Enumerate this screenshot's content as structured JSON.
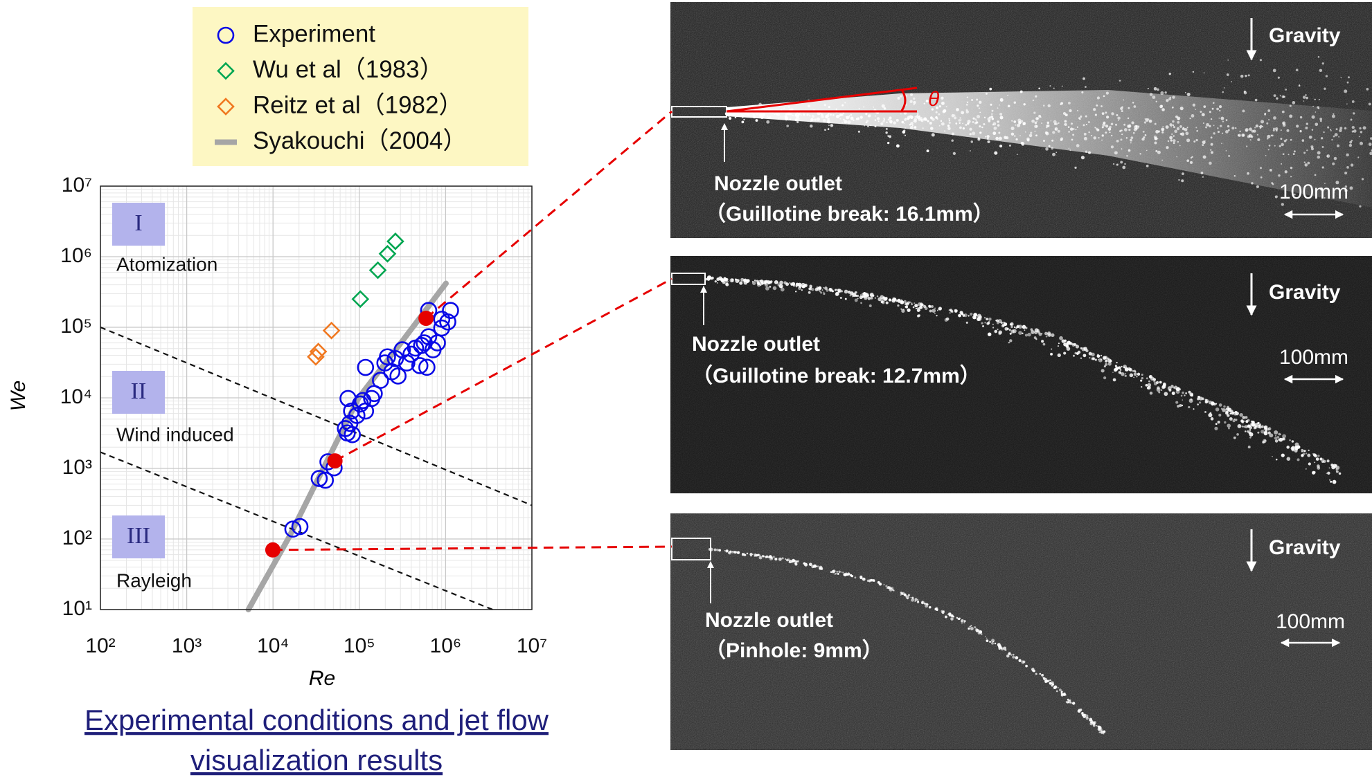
{
  "chart_data": {
    "type": "scatter",
    "xlabel": "Re",
    "ylabel": "We",
    "xscale": "log",
    "yscale": "log",
    "xlim": [
      100,
      10000000
    ],
    "ylim": [
      10,
      10000000
    ],
    "xticks": [
      {
        "value": 100,
        "label": "10²"
      },
      {
        "value": 1000,
        "label": "10³"
      },
      {
        "value": 10000,
        "label": "10⁴"
      },
      {
        "value": 100000,
        "label": "10⁵"
      },
      {
        "value": 1000000,
        "label": "10⁶"
      },
      {
        "value": 10000000,
        "label": "10⁷"
      }
    ],
    "yticks": [
      {
        "value": 10,
        "label": "10¹"
      },
      {
        "value": 100,
        "label": "10²"
      },
      {
        "value": 1000,
        "label": "10³"
      },
      {
        "value": 10000,
        "label": "10⁴"
      },
      {
        "value": 100000,
        "label": "10⁵"
      },
      {
        "value": 1000000,
        "label": "10⁶"
      },
      {
        "value": 10000000,
        "label": "10⁷"
      }
    ],
    "grid": true,
    "series": [
      {
        "name": "Experiment",
        "color": "#0a0ae6",
        "marker": "circle",
        "x": [
          17000,
          20500,
          34300,
          40400,
          43300,
          51000,
          69000,
          72400,
          77600,
          83000,
          74000,
          81400,
          93700,
          102800,
          110000,
          118000,
          139000,
          149000,
          118000,
          176000,
          198000,
          212000,
          238000,
          262000,
          281000,
          315000,
          355000,
          398000,
          448000,
          503000,
          527000,
          607000,
          636000,
          636000,
          714000,
          803000,
          902000,
          902000,
          1140000,
          1060000,
          566000
        ],
        "values": [
          138,
          150,
          720,
          680,
          1240,
          1020,
          3670,
          3180,
          4360,
          3010,
          9800,
          6500,
          5630,
          8170,
          9160,
          6500,
          9800,
          11500,
          27000,
          17700,
          31200,
          38100,
          23400,
          36000,
          20400,
          47900,
          31200,
          41500,
          50700,
          28600,
          55200,
          27100,
          73500,
          173000,
          47900,
          60100,
          97700,
          130000,
          173000,
          119000,
          60100
        ]
      },
      {
        "name": "Wu et al（1983）",
        "color": "#00a651",
        "marker": "diamond",
        "x": [
          102800,
          164000,
          212000,
          262000
        ],
        "values": [
          251000,
          643000,
          1100000,
          1650000
        ]
      },
      {
        "name": "Reitz et al（1982）",
        "color": "#f07820",
        "marker": "diamond",
        "x": [
          47600,
          33500,
          31300
        ],
        "values": [
          89800,
          45300,
          38100
        ]
      },
      {
        "name": "Syakouchi（2004）",
        "color": "#a6a6a6",
        "marker": "line",
        "x": [
          5180,
          15200,
          43300,
          98200,
          315000,
          1010000
        ],
        "values": [
          10,
          104,
          1350,
          10000,
          63700,
          419000
        ]
      }
    ],
    "highlight": {
      "color": "#e60000",
      "x": [
        9950,
        52200,
        593000
      ],
      "values": [
        70,
        1280,
        134000
      ]
    },
    "boundaries": [
      {
        "x": [
          100,
          10000000
        ],
        "values": [
          100000,
          300
        ]
      },
      {
        "x": [
          100,
          3500000
        ],
        "values": [
          1700,
          10
        ]
      }
    ],
    "regions": [
      {
        "numeral": "I",
        "name": "Atomization"
      },
      {
        "numeral": "II",
        "name": "Wind induced"
      },
      {
        "numeral": "III",
        "name": "Rayleigh"
      }
    ]
  },
  "panels": [
    {
      "gravity": "Gravity",
      "nozzle": "Nozzle outlet",
      "condition": "（Guillotine break: 16.1mm）",
      "scale": "100mm",
      "angle": "θ"
    },
    {
      "gravity": "Gravity",
      "nozzle": "Nozzle outlet",
      "condition": "（Guillotine break: 12.7mm）",
      "scale": "100mm"
    },
    {
      "gravity": "Gravity",
      "nozzle": "Nozzle outlet",
      "condition": "（Pinhole: 9mm）",
      "scale": "100mm"
    }
  ],
  "caption": [
    "Experimental conditions and jet flow",
    "visualization results"
  ]
}
